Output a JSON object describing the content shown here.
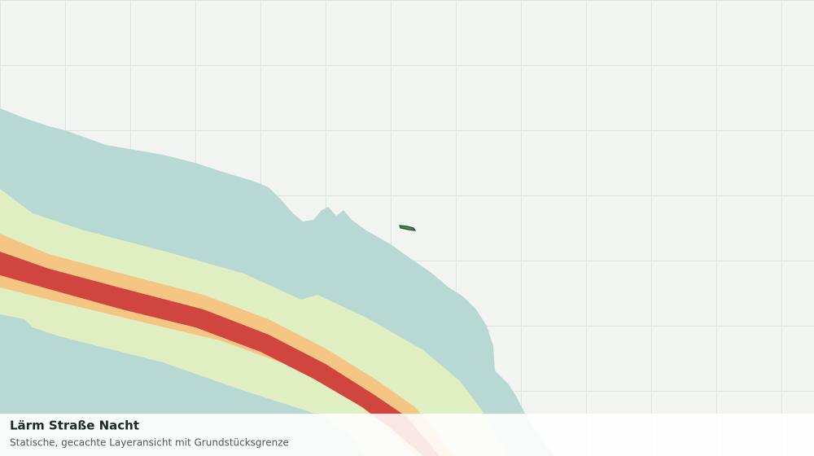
{
  "panel": {
    "title": "Lärm Straße Nacht",
    "subtitle": "Statische, gecachte Layeransicht mit Grundstücksgrenze"
  }
}
